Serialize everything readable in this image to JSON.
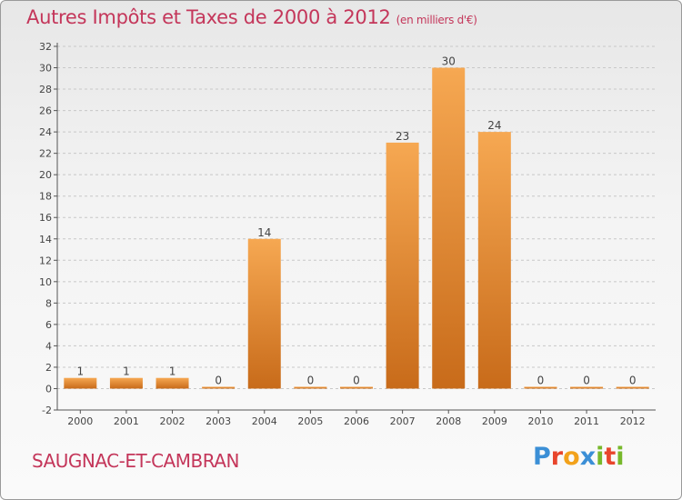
{
  "header": {
    "title": "Autres Impôts et Taxes de 2000 à 2012",
    "subtitle": "(en milliers d'€)"
  },
  "footer": {
    "town": "SAUGNAC-ET-CAMBRAN",
    "logo_letters": [
      "P",
      "r",
      "o",
      "x",
      "i",
      "t",
      "i"
    ],
    "logo_colors": [
      "#3b8fd6",
      "#e8452c",
      "#f2a21b",
      "#3b8fd6",
      "#77b82a",
      "#e8452c",
      "#77b82a"
    ]
  },
  "colors": {
    "title": "#c4365a",
    "bar_light": "#f6a852",
    "bar_dark": "#c86b1a",
    "grid": "#c8c8c8"
  },
  "chart_data": {
    "type": "bar",
    "categories": [
      "2000",
      "2001",
      "2002",
      "2003",
      "2004",
      "2005",
      "2006",
      "2007",
      "2008",
      "2009",
      "2010",
      "2011",
      "2012"
    ],
    "values": [
      1,
      1,
      1,
      0,
      14,
      0,
      0,
      23,
      30,
      24,
      0,
      0,
      0
    ],
    "data_labels": [
      "1",
      "1",
      "1",
      "0",
      "14",
      "0",
      "0",
      "23",
      "30",
      "24",
      "0",
      "0",
      "0"
    ],
    "yticks": [
      "-2",
      "0",
      "2",
      "4",
      "6",
      "8",
      "10",
      "12",
      "14",
      "16",
      "18",
      "20",
      "22",
      "24",
      "26",
      "28",
      "30",
      "32"
    ],
    "ylim": [
      -2,
      32
    ],
    "grid": "horizontal dashed",
    "legend": "none"
  }
}
